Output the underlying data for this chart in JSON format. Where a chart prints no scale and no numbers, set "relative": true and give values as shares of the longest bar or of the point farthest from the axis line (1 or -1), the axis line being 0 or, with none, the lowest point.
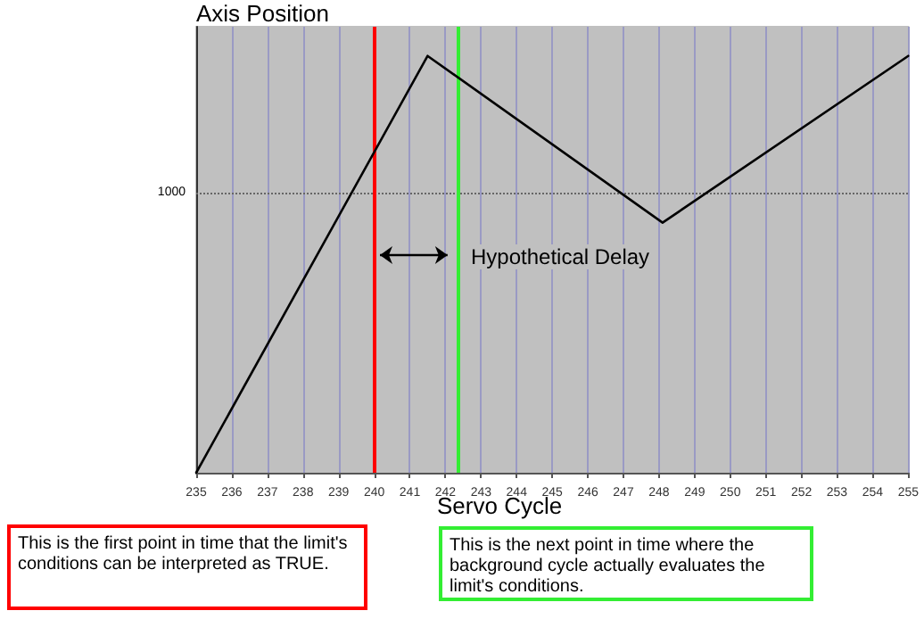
{
  "chart_data": {
    "type": "line",
    "relative": true,
    "ylabel": "Axis Position",
    "xlabel": "Servo Cycle",
    "x": [
      235,
      241.5,
      248.1,
      255
    ],
    "series": [
      {
        "color": "#000000",
        "values": [
          0,
          1,
          0.6,
          1.0
        ]
      }
    ],
    "xlim": [
      235,
      255
    ],
    "xticks": [
      235,
      236,
      237,
      238,
      239,
      240,
      241,
      242,
      243,
      244,
      245,
      246,
      247,
      248,
      249,
      250,
      251,
      252,
      253,
      254,
      255
    ],
    "grid": "x",
    "marker": "none",
    "line_style": "solid",
    "ref_lines": [
      {
        "axis": "y",
        "value": 0.67,
        "color": "#666666",
        "line_style": "dotted"
      },
      {
        "axis": "x",
        "value": 240,
        "color": "#ff0000"
      },
      {
        "axis": "x",
        "value": 242.35,
        "color": "#33ee33"
      }
    ],
    "annotations": [
      "1000",
      "Hypothetical Delay",
      "This is the first point in time that the limit's conditions can be interpreted as TRUE.",
      "This is the next point in time where the background cycle actually evaluates the limit's conditions."
    ]
  }
}
